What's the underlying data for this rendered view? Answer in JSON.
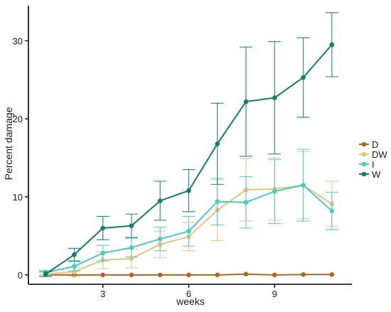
{
  "chart_data": {
    "type": "line",
    "title": "",
    "xlabel": "weeks",
    "ylabel": "Percent damage",
    "xlim": [
      0.4,
      11.7
    ],
    "ylim": [
      -1.2,
      34.5
    ],
    "x_ticks": [
      3,
      6,
      9
    ],
    "y_ticks": [
      0,
      10,
      20,
      30
    ],
    "grid": false,
    "legend": {
      "placement": "right",
      "entries": [
        "D",
        "DW",
        "I",
        "W"
      ]
    },
    "x": [
      1,
      2,
      3,
      4,
      5,
      6,
      7,
      8,
      9,
      10,
      11
    ],
    "series": [
      {
        "name": "D",
        "color": "#B3661A",
        "values": [
          0,
          0,
          0,
          0,
          0,
          0,
          0,
          0.1,
          0,
          0.05,
          0.05
        ],
        "error": [
          0,
          0,
          0,
          0,
          0,
          0,
          0,
          0,
          0,
          0,
          0
        ]
      },
      {
        "name": "DW",
        "color": "#E8C27F",
        "values": [
          0.1,
          0.4,
          1.9,
          2.1,
          3.9,
          4.9,
          8.3,
          10.9,
          11.0,
          11.5,
          9.1
        ],
        "error": [
          0.3,
          0.6,
          1.1,
          1.2,
          1.7,
          1.8,
          3.9,
          4.0,
          4.0,
          4.3,
          2.9
        ]
      },
      {
        "name": "I",
        "color": "#4ACDBD",
        "values": [
          0.3,
          1.1,
          2.8,
          3.5,
          4.6,
          5.6,
          9.4,
          9.3,
          10.7,
          11.5,
          8.2
        ],
        "error": [
          0.3,
          0.6,
          1.0,
          1.2,
          1.5,
          1.9,
          3.0,
          3.3,
          4.1,
          4.6,
          2.4
        ]
      },
      {
        "name": "W",
        "color": "#127D6B",
        "values": [
          0.1,
          2.6,
          6.0,
          6.3,
          9.5,
          10.8,
          16.8,
          22.2,
          22.7,
          25.3,
          29.5
        ],
        "error": [
          0.3,
          0.8,
          1.5,
          1.5,
          2.5,
          2.7,
          5.2,
          7.0,
          7.2,
          5.1,
          4.1
        ]
      }
    ]
  }
}
